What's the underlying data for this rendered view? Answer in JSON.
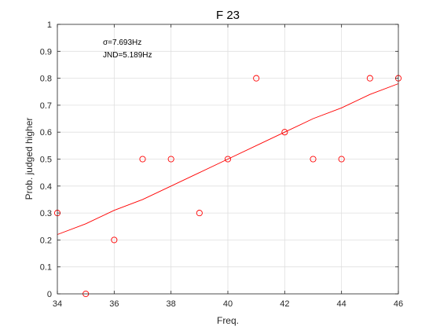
{
  "chart_data": {
    "type": "scatter",
    "title": "F 23",
    "xlabel": "Freq.",
    "ylabel": "Prob. judged higher",
    "xlim": [
      34,
      46
    ],
    "ylim": [
      0,
      1
    ],
    "x_ticks": [
      34,
      36,
      38,
      40,
      42,
      44,
      46
    ],
    "y_ticks": [
      0,
      0.1,
      0.2,
      0.3,
      0.4,
      0.5,
      0.6,
      0.7,
      0.8,
      0.9,
      1
    ],
    "y_tick_labels": [
      "0",
      "0.1",
      "0.2",
      "0.3",
      "0.4",
      "0.5",
      "0.6",
      "0.7",
      "0.8",
      "0.9",
      "1"
    ],
    "grid": true,
    "annotations": [
      "σ=7.693Hz",
      "JND=5.189Hz"
    ],
    "series": [
      {
        "kind": "scatter",
        "marker": "circle-open",
        "color": "#ff0000",
        "x": [
          34,
          35,
          36,
          37,
          38,
          39,
          40,
          41,
          42,
          43,
          44,
          45,
          46
        ],
        "y": [
          0.3,
          0.0,
          0.2,
          0.5,
          0.5,
          0.3,
          0.5,
          0.8,
          0.6,
          0.5,
          0.5,
          0.8,
          0.8
        ]
      },
      {
        "kind": "line",
        "color": "#ff0000",
        "x": [
          34,
          35,
          36,
          37,
          38,
          39,
          40,
          41,
          42,
          43,
          44,
          45,
          46
        ],
        "y": [
          0.22,
          0.26,
          0.31,
          0.35,
          0.4,
          0.45,
          0.5,
          0.55,
          0.6,
          0.65,
          0.69,
          0.74,
          0.78
        ]
      }
    ]
  }
}
